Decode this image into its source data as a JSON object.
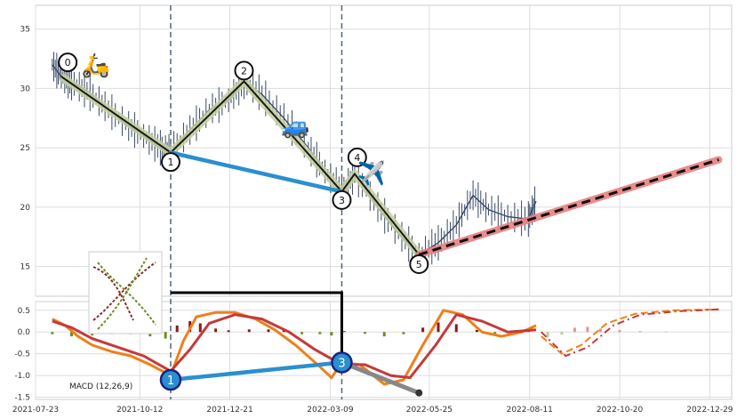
{
  "chart_data": [
    {
      "type": "line",
      "panel": "price",
      "ylim": [
        12.5,
        37
      ],
      "yticks": [
        "35",
        "30",
        "25",
        "20",
        "15"
      ],
      "grid": true,
      "price_series": [
        [
          "2021-08-05",
          32.0
        ],
        [
          "2021-08-12",
          31.0
        ],
        [
          "2021-08-20",
          30.5
        ],
        [
          "2021-09-01",
          29.8
        ],
        [
          "2021-09-15",
          28.5
        ],
        [
          "2021-10-01",
          27.0
        ],
        [
          "2021-10-15",
          26.0
        ],
        [
          "2021-10-28",
          25.0
        ],
        [
          "2021-11-05",
          24.6
        ],
        [
          "2021-11-20",
          26.5
        ],
        [
          "2021-12-05",
          28.2
        ],
        [
          "2021-12-20",
          29.0
        ],
        [
          "2022-01-01",
          30.6
        ],
        [
          "2022-01-15",
          29.5
        ],
        [
          "2022-02-01",
          27.5
        ],
        [
          "2022-02-20",
          25.0
        ],
        [
          "2022-03-05",
          23.0
        ],
        [
          "2022-03-18",
          21.3
        ],
        [
          "2022-03-28",
          22.8
        ],
        [
          "2022-04-15",
          20.0
        ],
        [
          "2022-05-01",
          17.8
        ],
        [
          "2022-05-17",
          16.0
        ],
        [
          "2022-06-01",
          17.0
        ],
        [
          "2022-06-15",
          18.5
        ],
        [
          "2022-06-28",
          21.0
        ],
        [
          "2022-07-10",
          19.8
        ],
        [
          "2022-07-25",
          19.2
        ],
        [
          "2022-08-10",
          19.0
        ],
        [
          "2022-08-16",
          20.5
        ]
      ],
      "wave_points": [
        {
          "label": "0",
          "date": "2021-08-12",
          "price": 31.0
        },
        {
          "label": "1",
          "date": "2021-11-05",
          "price": 24.6
        },
        {
          "label": "2",
          "date": "2022-01-01",
          "price": 30.6
        },
        {
          "label": "3",
          "date": "2022-03-18",
          "price": 21.3
        },
        {
          "label": "4",
          "date": "2022-03-28",
          "price": 22.8
        },
        {
          "label": "5",
          "date": "2022-05-17",
          "price": 16.0
        }
      ],
      "wave_label_positions_price": [
        {
          "label": "0",
          "date": "2021-08-17",
          "price": 32.2
        },
        {
          "label": "1",
          "date": "2021-11-05",
          "price": 23.8
        },
        {
          "label": "2",
          "date": "2022-01-01",
          "price": 31.5
        },
        {
          "label": "3",
          "date": "2022-03-18",
          "price": 20.6
        },
        {
          "label": "4",
          "date": "2022-03-30",
          "price": 24.2
        },
        {
          "label": "5",
          "date": "2022-05-17",
          "price": 15.2
        }
      ],
      "support_line": [
        [
          "2021-11-05",
          24.6
        ],
        [
          "2022-03-18",
          21.3
        ]
      ],
      "forecast_line": [
        [
          "2022-05-17",
          16.0
        ],
        [
          "2023-01-05",
          24.0
        ]
      ],
      "emojis": [
        {
          "glyph": "🛵",
          "date": "2021-09-08",
          "price": 31.3
        },
        {
          "glyph": "🚙",
          "date": "2022-02-10",
          "price": 26.2
        },
        {
          "glyph": "✈️",
          "date": "2022-04-10",
          "price": 22.2
        }
      ],
      "vlines": [
        "2021-11-05",
        "2022-03-18"
      ],
      "colors": {
        "price": "#3a4a66",
        "wave": "#1a1a1a",
        "wave_band": "#c5cfa0",
        "support": "#2a8fd0",
        "forecast_band": "#e88080",
        "forecast": "#111111",
        "vline": "#50657a"
      }
    },
    {
      "type": "line",
      "panel": "macd",
      "ylim": [
        -1.55,
        0.7
      ],
      "yticks": [
        "0.5",
        "0.0",
        "-0.5",
        "-1.0",
        "-1.5"
      ],
      "legend_text": "MACD (12,26,9)",
      "macd": [
        [
          "2021-08-05",
          0.3
        ],
        [
          "2021-08-15",
          0.15
        ],
        [
          "2021-08-25",
          -0.1
        ],
        [
          "2021-09-05",
          -0.3
        ],
        [
          "2021-09-20",
          -0.45
        ],
        [
          "2021-10-05",
          -0.55
        ],
        [
          "2021-10-20",
          -0.75
        ],
        [
          "2021-11-05",
          -1.0
        ],
        [
          "2021-11-15",
          -0.2
        ],
        [
          "2021-11-25",
          0.35
        ],
        [
          "2021-12-10",
          0.45
        ],
        [
          "2021-12-25",
          0.45
        ],
        [
          "2022-01-10",
          0.3
        ],
        [
          "2022-01-25",
          0.05
        ],
        [
          "2022-02-10",
          -0.3
        ],
        [
          "2022-03-01",
          -0.8
        ],
        [
          "2022-03-10",
          -1.05
        ],
        [
          "2022-03-18",
          -0.7
        ],
        [
          "2022-04-01",
          -0.75
        ],
        [
          "2022-04-20",
          -1.2
        ],
        [
          "2022-05-05",
          -1.1
        ],
        [
          "2022-05-20",
          -0.3
        ],
        [
          "2022-06-05",
          0.5
        ],
        [
          "2022-06-20",
          0.4
        ],
        [
          "2022-07-05",
          0.0
        ],
        [
          "2022-07-20",
          -0.1
        ],
        [
          "2022-08-05",
          0.0
        ],
        [
          "2022-08-16",
          0.15
        ]
      ],
      "signal": [
        [
          "2021-08-05",
          0.25
        ],
        [
          "2021-08-20",
          0.1
        ],
        [
          "2021-09-05",
          -0.15
        ],
        [
          "2021-09-25",
          -0.35
        ],
        [
          "2021-10-15",
          -0.55
        ],
        [
          "2021-11-05",
          -0.9
        ],
        [
          "2021-11-20",
          -0.4
        ],
        [
          "2021-12-05",
          0.2
        ],
        [
          "2021-12-25",
          0.4
        ],
        [
          "2022-01-15",
          0.3
        ],
        [
          "2022-02-05",
          0.0
        ],
        [
          "2022-02-25",
          -0.4
        ],
        [
          "2022-03-18",
          -0.75
        ],
        [
          "2022-04-05",
          -0.75
        ],
        [
          "2022-04-25",
          -1.0
        ],
        [
          "2022-05-10",
          -1.05
        ],
        [
          "2022-05-30",
          -0.3
        ],
        [
          "2022-06-15",
          0.4
        ],
        [
          "2022-07-05",
          0.25
        ],
        [
          "2022-07-25",
          0.0
        ],
        [
          "2022-08-16",
          0.05
        ]
      ],
      "macd_forecast": [
        [
          "2022-08-20",
          -0.1
        ],
        [
          "2022-09-05",
          -0.5
        ],
        [
          "2022-09-20",
          -0.3
        ],
        [
          "2022-10-10",
          0.2
        ],
        [
          "2022-11-01",
          0.42
        ],
        [
          "2022-12-01",
          0.5
        ],
        [
          "2023-01-05",
          0.52
        ]
      ],
      "signal_forecast": [
        [
          "2022-08-20",
          0.0
        ],
        [
          "2022-09-08",
          -0.55
        ],
        [
          "2022-09-25",
          -0.35
        ],
        [
          "2022-10-15",
          0.15
        ],
        [
          "2022-11-05",
          0.4
        ],
        [
          "2022-12-05",
          0.48
        ],
        [
          "2023-01-05",
          0.52
        ]
      ],
      "hist": [
        [
          "2021-08-05",
          -0.05
        ],
        [
          "2021-08-20",
          -0.1
        ],
        [
          "2021-09-05",
          -0.08
        ],
        [
          "2021-09-20",
          -0.05
        ],
        [
          "2021-10-05",
          -0.05
        ],
        [
          "2021-10-20",
          -0.1
        ],
        [
          "2021-11-01",
          -0.15
        ],
        [
          "2021-11-10",
          0.15
        ],
        [
          "2021-11-20",
          0.25
        ],
        [
          "2021-11-28",
          0.2
        ],
        [
          "2021-12-10",
          0.08
        ],
        [
          "2021-12-20",
          0.04
        ],
        [
          "2022-01-05",
          0.06
        ],
        [
          "2022-01-20",
          0.06
        ],
        [
          "2022-02-01",
          0.05
        ],
        [
          "2022-02-15",
          -0.05
        ],
        [
          "2022-03-01",
          -0.05
        ],
        [
          "2022-03-10",
          -0.08
        ],
        [
          "2022-03-20",
          0.02
        ],
        [
          "2022-04-05",
          -0.04
        ],
        [
          "2022-04-20",
          -0.1
        ],
        [
          "2022-05-05",
          -0.05
        ],
        [
          "2022-05-20",
          0.1
        ],
        [
          "2022-06-01",
          0.22
        ],
        [
          "2022-06-15",
          0.18
        ],
        [
          "2022-07-01",
          0.05
        ],
        [
          "2022-07-15",
          -0.05
        ],
        [
          "2022-08-01",
          -0.04
        ],
        [
          "2022-08-10",
          0.06
        ]
      ],
      "hist_forecast": [
        [
          "2022-08-25",
          -0.12
        ],
        [
          "2022-09-05",
          -0.06
        ],
        [
          "2022-09-15",
          0.1
        ],
        [
          "2022-09-25",
          0.12
        ],
        [
          "2022-10-05",
          0.08
        ],
        [
          "2022-10-20",
          0.04
        ],
        [
          "2022-11-05",
          0.02
        ],
        [
          "2022-11-25",
          0.01
        ]
      ],
      "wave_points": [
        {
          "label": "1",
          "date": "2021-11-05",
          "value": -1.1
        },
        {
          "label": "3",
          "date": "2022-03-18",
          "value": -0.7
        }
      ],
      "divergence_line": [
        [
          "2021-11-05",
          -1.1
        ],
        [
          "2022-03-18",
          -0.7
        ]
      ],
      "extension_line": [
        [
          "2022-03-18",
          -0.7
        ],
        [
          "2022-05-17",
          -1.4
        ]
      ],
      "colors": {
        "macd": "#f07f1a",
        "signal": "#c43a3a",
        "hist_pos": "#8b1a1a",
        "hist_neg": "#6b8e23",
        "wave_point": "#2a8fd0",
        "divergence": "#2a8fd0",
        "extension": "#888888"
      }
    }
  ],
  "x_axis": {
    "start_date": "2021-07-23",
    "end_date": "2023-01-15",
    "tick_labels": [
      "2021-07-23",
      "2021-10-12",
      "2021-12-21",
      "2022-03-09",
      "2022-05-25",
      "2022-08-11",
      "2022-10-20",
      "2022-12-29"
    ]
  },
  "connector": {
    "from_date": "2021-11-05",
    "to_date": "2022-03-18"
  }
}
